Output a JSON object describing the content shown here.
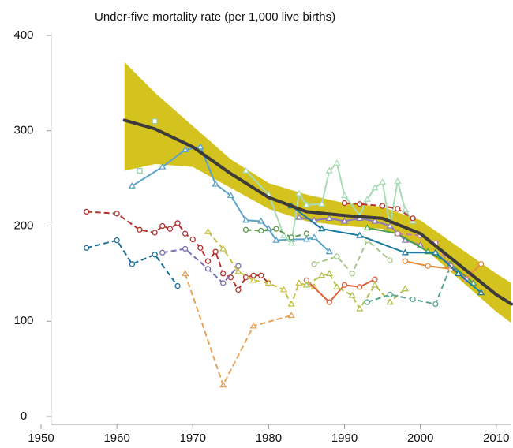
{
  "chart_data": {
    "type": "line",
    "title": "Under-five mortality rate (per 1,000 live births)",
    "xlim": [
      1950,
      2012
    ],
    "ylim": [
      0,
      400
    ],
    "xticks": [
      1950,
      1960,
      1970,
      1980,
      1990,
      2000,
      2010
    ],
    "yticks": [
      0,
      100,
      200,
      300,
      400
    ],
    "band": {
      "color": "#d4c21f",
      "x": [
        1961,
        1965,
        1970,
        1975,
        1980,
        1985,
        1990,
        1995,
        2000,
        2005,
        2010,
        2012
      ],
      "lower": [
        258,
        265,
        262,
        240,
        218,
        205,
        200,
        197,
        180,
        145,
        110,
        98
      ],
      "upper": [
        372,
        340,
        305,
        270,
        245,
        233,
        224,
        220,
        206,
        178,
        150,
        140
      ]
    },
    "trend": {
      "color": "#3d3a3a",
      "x": [
        1961,
        1965,
        1970,
        1975,
        1980,
        1985,
        1990,
        1995,
        2000,
        2005,
        2010,
        2012
      ],
      "values": [
        311,
        302,
        283,
        255,
        230,
        215,
        211,
        208,
        192,
        160,
        128,
        118
      ]
    },
    "series": [
      {
        "color": "#5ba3c9",
        "style": "solid",
        "marker": "triangle",
        "x": [
          1962,
          1966,
          1969,
          1971,
          1973,
          1975,
          1977,
          1979,
          1980,
          1981,
          1983,
          1985,
          1986,
          1988
        ],
        "values": [
          242,
          262,
          280,
          283,
          244,
          232,
          206,
          205,
          197,
          185,
          186,
          186,
          188,
          173
        ]
      },
      {
        "color": "#a8dbb5",
        "style": "solid",
        "marker": "triangle",
        "x": [
          1977,
          1980,
          1982,
          1983,
          1984,
          1985,
          1987,
          1988,
          1989,
          1990,
          1992,
          1993,
          1994,
          1995,
          1996,
          1997,
          1998,
          1999
        ],
        "values": [
          258,
          233,
          190,
          182,
          234,
          222,
          223,
          258,
          266,
          232,
          211,
          228,
          240,
          246,
          200,
          247,
          217,
          205
        ]
      },
      {
        "color": "#8d7ab8",
        "style": "solid",
        "marker": "triangle",
        "x": [
          1984,
          1986,
          1988,
          1990,
          1992,
          1994,
          1996,
          1998,
          2000
        ],
        "values": [
          209,
          206,
          208,
          205,
          208,
          205,
          200,
          185,
          180
        ]
      },
      {
        "color": "#b5332d",
        "style": "dashed",
        "marker": "circle",
        "x": [
          1956,
          1960,
          1963,
          1965,
          1966,
          1967,
          1968,
          1969,
          1970,
          1971,
          1972,
          1973,
          1974,
          1975,
          1976,
          1977,
          1978,
          1979,
          1980
        ],
        "values": [
          215,
          213,
          196,
          193,
          200,
          197,
          203,
          192,
          186,
          177,
          163,
          173,
          150,
          146,
          133,
          146,
          148,
          148,
          140
        ]
      },
      {
        "color": "#b5332d",
        "style": "dashed",
        "marker": "circle",
        "x": [
          1990,
          1992,
          1995,
          1997,
          1999
        ],
        "values": [
          224,
          223,
          221,
          218,
          208
        ]
      },
      {
        "color": "#1f6e9a",
        "style": "dashed",
        "marker": "circle",
        "x": [
          1956,
          1960,
          1962,
          1965,
          1968
        ],
        "values": [
          177,
          185,
          160,
          170,
          137
        ]
      },
      {
        "color": "#7b6bb0",
        "style": "dashed",
        "marker": "circle",
        "x": [
          1966,
          1969,
          1972,
          1974,
          1976
        ],
        "values": [
          172,
          176,
          155,
          140,
          158
        ]
      },
      {
        "color": "#c8c043",
        "style": "dashed",
        "marker": "triangle",
        "x": [
          1972,
          1974,
          1976,
          1978,
          1980,
          1982,
          1983,
          1984,
          1986
        ],
        "values": [
          194,
          176,
          152,
          143,
          140,
          133,
          118,
          140,
          136
        ]
      },
      {
        "color": "#e8a25a",
        "style": "dashed",
        "marker": "triangle",
        "x": [
          1969,
          1974,
          1978,
          1983
        ],
        "values": [
          150,
          33,
          95,
          106
        ]
      },
      {
        "color": "#5c9a4d",
        "style": "dashed",
        "marker": "circle",
        "x": [
          1977,
          1979,
          1981,
          1983,
          1985
        ],
        "values": [
          196,
          195,
          197,
          188,
          192
        ]
      },
      {
        "color": "#a8c78d",
        "style": "dashed",
        "marker": "circle",
        "x": [
          1986,
          1989,
          1991,
          1993,
          1996
        ],
        "values": [
          160,
          168,
          150,
          185,
          164
        ]
      },
      {
        "color": "#e35f3a",
        "style": "solid",
        "marker": "circle",
        "x": [
          1985,
          1988,
          1990,
          1992,
          1994
        ],
        "values": [
          143,
          120,
          138,
          136,
          144
        ]
      },
      {
        "color": "#b5c050",
        "style": "dashed",
        "marker": "triangle",
        "x": [
          1985,
          1987,
          1988,
          1989,
          1991,
          1992,
          1994,
          1996,
          1998
        ],
        "values": [
          138,
          148,
          150,
          136,
          127,
          113,
          138,
          120,
          134
        ]
      },
      {
        "color": "#5aa68d",
        "style": "dashed",
        "marker": "circle",
        "x": [
          1993,
          1996,
          1999,
          2002,
          2004
        ],
        "values": [
          120,
          128,
          123,
          118,
          158
        ]
      },
      {
        "color": "#e88a3c",
        "style": "solid",
        "marker": "circle",
        "x": [
          1998,
          2001,
          2004,
          2006,
          2008
        ],
        "values": [
          163,
          158,
          155,
          145,
          160
        ]
      },
      {
        "color": "#4aa04a",
        "style": "solid",
        "marker": "triangle",
        "x": [
          1993,
          1997,
          2001,
          2004,
          2007
        ],
        "values": [
          198,
          192,
          173,
          160,
          140
        ]
      },
      {
        "color": "#c77aa5",
        "style": "dashed",
        "marker": "circle",
        "x": [
          1997,
          2000,
          2002,
          2004,
          2006
        ],
        "values": [
          192,
          190,
          182,
          158,
          144
        ]
      },
      {
        "color": "#1b7a9e",
        "style": "solid",
        "marker": "triangle",
        "x": [
          1983,
          1987,
          1992,
          1998,
          2002,
          2005,
          2008
        ],
        "values": [
          221,
          197,
          190,
          172,
          172,
          150,
          130
        ]
      },
      {
        "color": "#8fcf9e",
        "style": "none",
        "marker": "square",
        "x": [
          1963,
          1965
        ],
        "values": [
          258,
          310
        ]
      }
    ]
  }
}
